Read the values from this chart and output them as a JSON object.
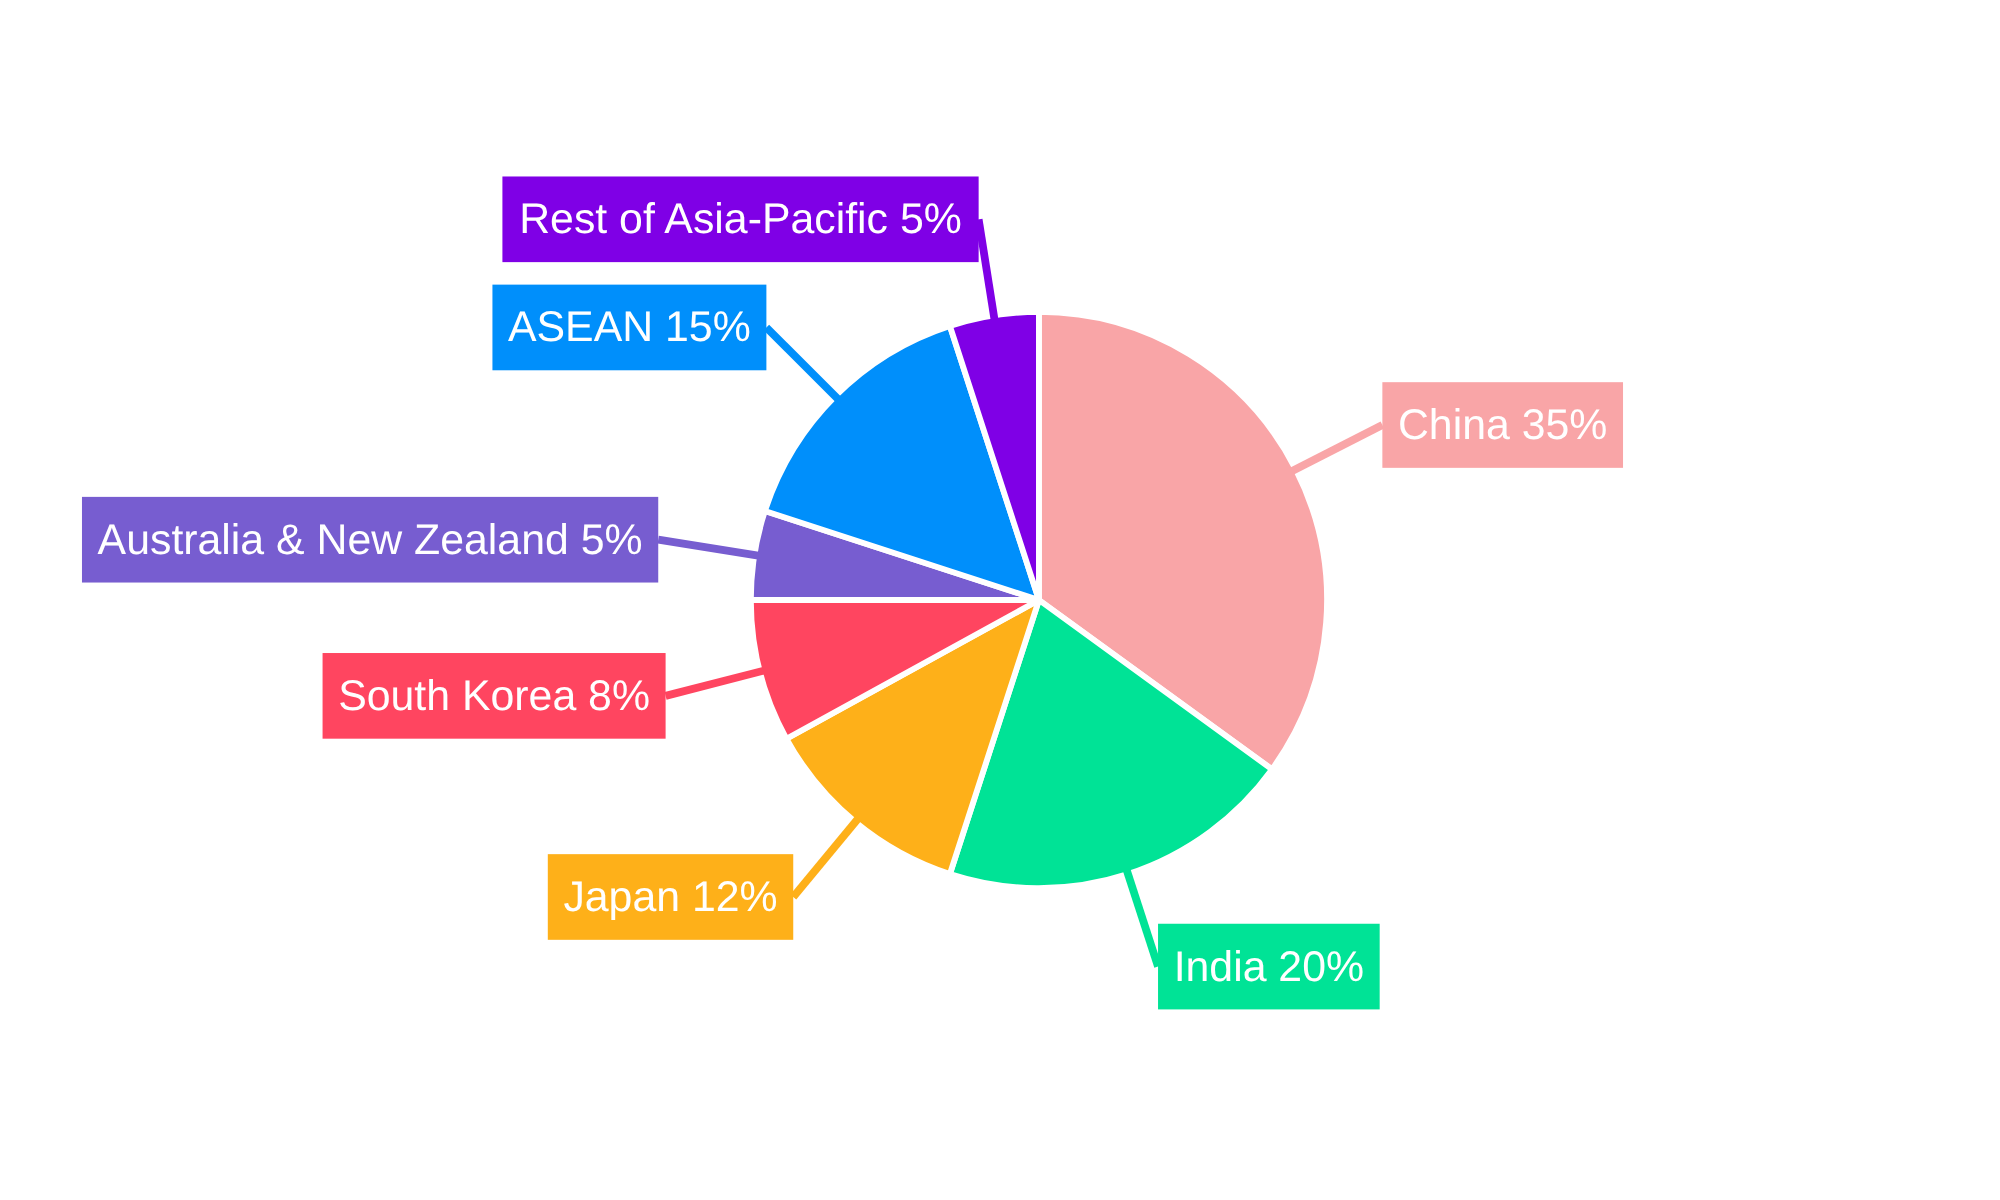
{
  "chart_data": {
    "type": "pie",
    "categories": [
      "China",
      "India",
      "Japan",
      "South Korea",
      "Australia & New Zealand",
      "ASEAN",
      "Rest of Asia-Pacific"
    ],
    "values": [
      35,
      20,
      12,
      8,
      5,
      15,
      5
    ],
    "value_labels": [
      "35%",
      "20%",
      "12%",
      "8%",
      "5%",
      "15%",
      "5%"
    ],
    "colors": [
      "#f9a5a7",
      "#00e396",
      "#feb019",
      "#ff4560",
      "#775dd0",
      "#008ffb",
      "#7f00e6"
    ]
  }
}
